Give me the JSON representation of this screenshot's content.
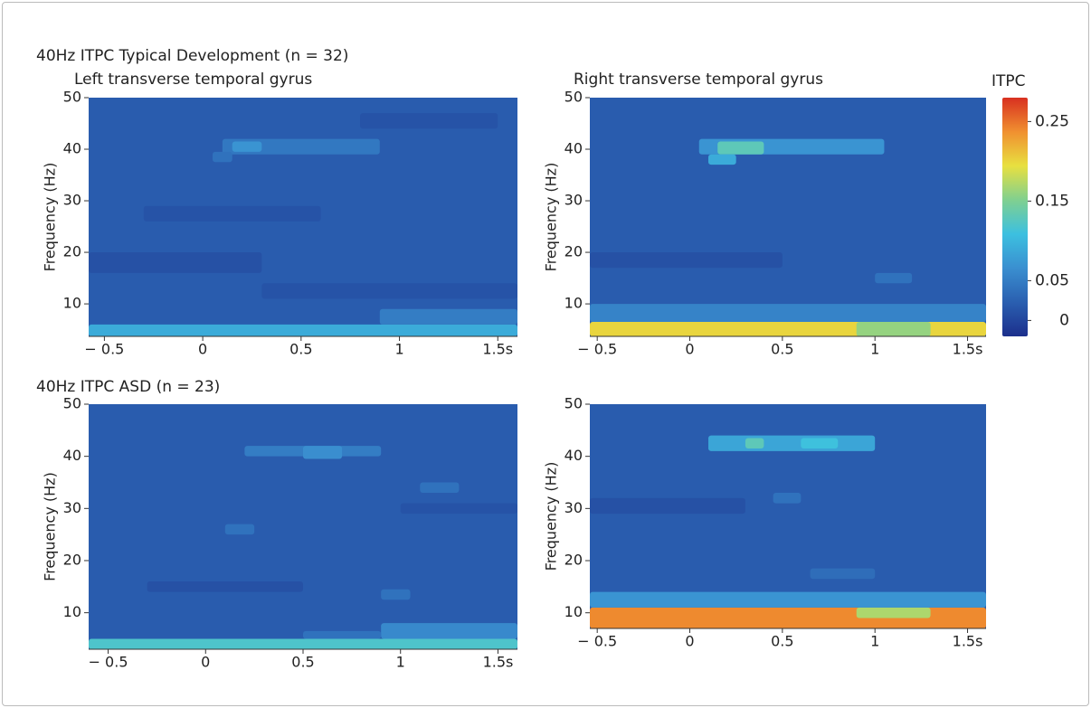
{
  "chart_data": [
    {
      "type": "heatmap",
      "suptitle": "40Hz ITPC Typical Development (n = 32)",
      "title": "Left transverse temporal gyrus",
      "ylabel": "Frequency (Hz)",
      "xlim": [
        -0.58,
        1.6
      ],
      "ylim": [
        3.7,
        50
      ],
      "xticks": [
        {
          "value": -0.5,
          "label": "− 0.5"
        },
        0,
        0.5,
        1,
        {
          "value": 1.5,
          "label": "1.5s"
        }
      ],
      "yticks": [
        10,
        20,
        30,
        40,
        50
      ],
      "background": 0.02,
      "cells": [
        [
          -0.58,
          1.6,
          3.7,
          6,
          0.09
        ],
        [
          0.9,
          1.6,
          6,
          9,
          0.05
        ],
        [
          0.1,
          0.9,
          39,
          42,
          0.045
        ],
        [
          0.15,
          0.3,
          39.5,
          41.5,
          0.07
        ],
        [
          0.05,
          0.15,
          37.5,
          39.5,
          0.04
        ],
        [
          -0.58,
          0.3,
          16,
          20,
          0.01
        ],
        [
          0.3,
          1.6,
          11,
          14,
          0.012
        ],
        [
          -0.3,
          0.6,
          26,
          29,
          0.012
        ],
        [
          0.8,
          1.5,
          44,
          47,
          0.012
        ]
      ]
    },
    {
      "type": "heatmap",
      "title": "Right transverse temporal gyrus",
      "ylabel": "Frequency (Hz)",
      "xlim": [
        -0.54,
        1.6
      ],
      "ylim": [
        3.7,
        50
      ],
      "xticks": [
        {
          "value": -0.5,
          "label": "− 0.5"
        },
        0,
        0.5,
        1,
        {
          "value": 1.5,
          "label": "1.5s"
        }
      ],
      "yticks": [
        10,
        20,
        30,
        40,
        50
      ],
      "background": 0.02,
      "cells": [
        [
          -0.54,
          1.6,
          3.7,
          6.5,
          0.2
        ],
        [
          0.9,
          1.3,
          3.7,
          6.5,
          0.16
        ],
        [
          -0.54,
          1.6,
          6.5,
          10,
          0.055
        ],
        [
          0.05,
          1.05,
          39,
          42,
          0.07
        ],
        [
          0.15,
          0.4,
          39,
          41.5,
          0.13
        ],
        [
          0.1,
          0.25,
          37,
          39,
          0.09
        ],
        [
          1.0,
          1.2,
          14,
          16,
          0.04
        ],
        [
          -0.54,
          0.5,
          17,
          20,
          0.01
        ]
      ]
    },
    {
      "type": "heatmap",
      "suptitle": "40Hz ITPC ASD (n = 23)",
      "ylabel": "Frequency (Hz)",
      "xlim": [
        -0.6,
        1.6
      ],
      "ylim": [
        3,
        50
      ],
      "xticks": [
        {
          "value": -0.5,
          "label": "− 0.5"
        },
        0,
        0.5,
        1,
        {
          "value": 1.5,
          "label": "1.5s"
        }
      ],
      "yticks": [
        10,
        20,
        30,
        40,
        50
      ],
      "background": 0.02,
      "cells": [
        [
          -0.6,
          1.6,
          3,
          5,
          0.12
        ],
        [
          0.9,
          1.6,
          5,
          8,
          0.06
        ],
        [
          0.5,
          0.9,
          5,
          6.5,
          0.04
        ],
        [
          0.2,
          0.9,
          40,
          42,
          0.05
        ],
        [
          0.5,
          0.7,
          39.5,
          42,
          0.065
        ],
        [
          0.1,
          0.25,
          25,
          27,
          0.04
        ],
        [
          1.1,
          1.3,
          33,
          35,
          0.04
        ],
        [
          0.9,
          1.05,
          12.5,
          14.5,
          0.04
        ],
        [
          -0.3,
          0.5,
          14,
          16,
          0.01
        ],
        [
          1.0,
          1.6,
          29,
          31,
          0.012
        ]
      ]
    },
    {
      "type": "heatmap",
      "ylabel": "Frequency (Hz)",
      "xlim": [
        -0.54,
        1.6
      ],
      "ylim": [
        7,
        50
      ],
      "xticks": [
        {
          "value": -0.5,
          "label": "− 0.5"
        },
        0,
        0.5,
        1,
        {
          "value": 1.5,
          "label": "1.5s"
        }
      ],
      "yticks": [
        10,
        20,
        30,
        40,
        50
      ],
      "background": 0.02,
      "cells": [
        [
          -0.54,
          1.6,
          7,
          11,
          0.24
        ],
        [
          0.9,
          1.3,
          9,
          11,
          0.17
        ],
        [
          -0.54,
          1.6,
          11,
          14,
          0.07
        ],
        [
          0.1,
          1.0,
          41,
          44,
          0.085
        ],
        [
          0.3,
          0.4,
          41.5,
          43.5,
          0.13
        ],
        [
          0.6,
          0.8,
          41.5,
          43.5,
          0.11
        ],
        [
          0.45,
          0.6,
          31,
          33,
          0.04
        ],
        [
          0.65,
          1.0,
          16.5,
          18.5,
          0.035
        ],
        [
          -0.54,
          0.3,
          29,
          32,
          0.01
        ]
      ]
    }
  ],
  "colorbar": {
    "label": "ITPC",
    "lim": [
      -0.02,
      0.28
    ],
    "ticks": [
      0,
      0.05,
      0.15,
      0.25
    ],
    "colors": [
      "#1c2f8c",
      "#2a5fb0",
      "#3a8fd0",
      "#3cc0e0",
      "#80d090",
      "#e8e040",
      "#f09030",
      "#d83020"
    ]
  }
}
